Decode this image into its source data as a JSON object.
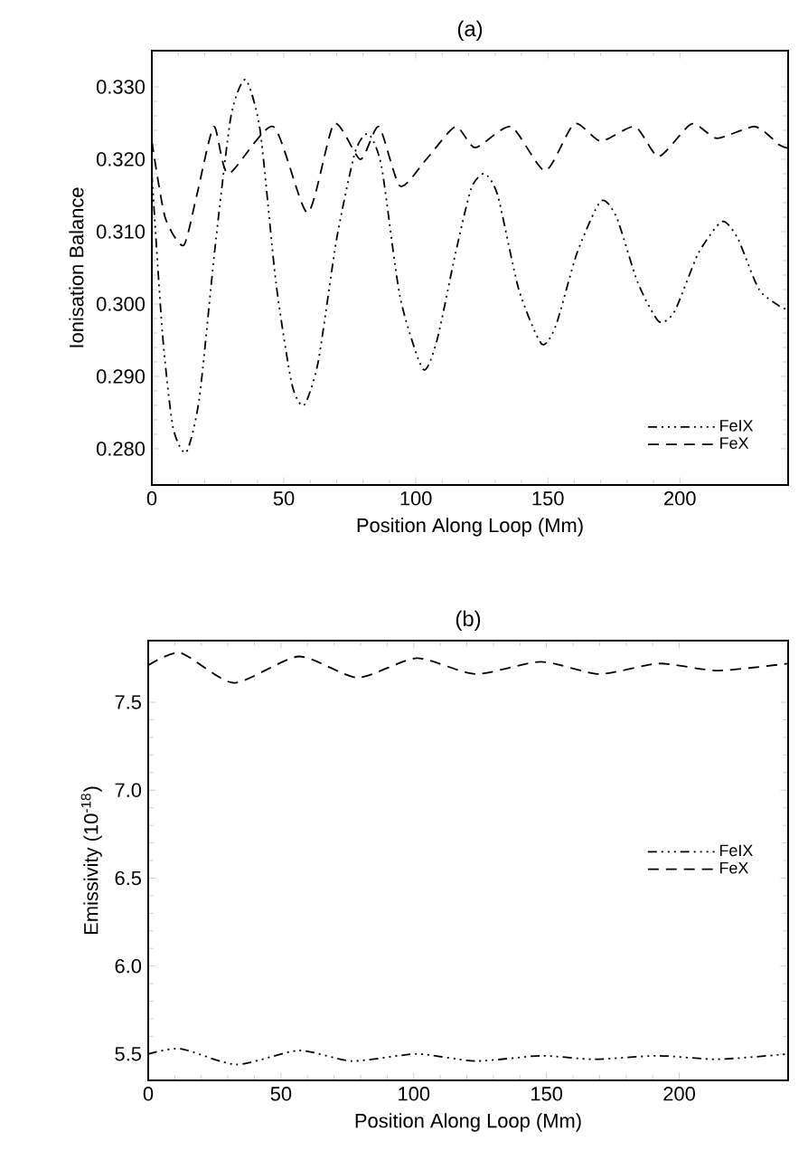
{
  "chart_data": [
    {
      "type": "line",
      "title": "(a)",
      "xlabel": "Position Along Loop (Mm)",
      "ylabel": "Ionisation Balance",
      "xlim": [
        0,
        241
      ],
      "ylim": [
        0.275,
        0.335
      ],
      "xticks": [
        0,
        50,
        100,
        150,
        200
      ],
      "yticks": [
        {
          "value": 0.28,
          "label": "0.280"
        },
        {
          "value": 0.29,
          "label": "0.290"
        },
        {
          "value": 0.3,
          "label": "0.300"
        },
        {
          "value": 0.31,
          "label": "0.310"
        },
        {
          "value": 0.32,
          "label": "0.320"
        },
        {
          "value": 0.33,
          "label": "0.330"
        }
      ],
      "legend": "bottom right",
      "grid": false,
      "series": [
        {
          "name": "FeIX",
          "color": "#000000",
          "line_style": "dashdot",
          "x": [
            0,
            4,
            8,
            13,
            18,
            24,
            30,
            35.5,
            41,
            47,
            53,
            57.6,
            63,
            70,
            77,
            82,
            87,
            94,
            102.7,
            108,
            115,
            121,
            126,
            131,
            139,
            147.6,
            153,
            161,
            170,
            176,
            184,
            192,
            198,
            207,
            216,
            222,
            230,
            238.7,
            241
          ],
          "values": [
            0.318,
            0.296,
            0.283,
            0.2795,
            0.287,
            0.308,
            0.326,
            0.331,
            0.324,
            0.303,
            0.289,
            0.286,
            0.292,
            0.309,
            0.321,
            0.3235,
            0.319,
            0.301,
            0.291,
            0.295,
            0.307,
            0.316,
            0.318,
            0.315,
            0.302,
            0.2945,
            0.297,
            0.307,
            0.3142,
            0.312,
            0.303,
            0.2976,
            0.299,
            0.307,
            0.3114,
            0.309,
            0.302,
            0.2995,
            0.2995
          ]
        },
        {
          "name": "FeX",
          "color": "#000000",
          "line_style": "dashed",
          "x": [
            0,
            5,
            12,
            17,
            23.5,
            29,
            46,
            59,
            69,
            79,
            86,
            94,
            104,
            115,
            122.5,
            136,
            149,
            160,
            170,
            183,
            192,
            204.5,
            214,
            228.5,
            237.6,
            241
          ],
          "values": [
            0.3225,
            0.312,
            0.3081,
            0.315,
            0.3245,
            0.318,
            0.3245,
            0.3126,
            0.3249,
            0.32,
            0.3245,
            0.3163,
            0.32,
            0.3245,
            0.3216,
            0.3245,
            0.3184,
            0.3249,
            0.3225,
            0.3245,
            0.3204,
            0.3249,
            0.3229,
            0.3245,
            0.322,
            0.3215
          ]
        }
      ]
    },
    {
      "type": "line",
      "title": "(b)",
      "xlabel": "Position Along Loop (Mm)",
      "ylabel": "Emissivity (10$^{-18}$)",
      "xlim": [
        0,
        241
      ],
      "ylim": [
        5.35,
        7.85
      ],
      "xticks": [
        0,
        50,
        100,
        150,
        200
      ],
      "yticks": [
        5.5,
        {
          "value": 6,
          "label": "6.0"
        },
        6.5,
        {
          "value": 7,
          "label": "7.0"
        },
        7.5
      ],
      "legend": "right",
      "grid": false,
      "series": [
        {
          "name": "FeIX",
          "color": "#000000",
          "line_style": "dashdot",
          "x": [
            0,
            12.2,
            33.3,
            56.7,
            76.7,
            101.1,
            123.3,
            147.8,
            167.8,
            192.2,
            214.4,
            241
          ],
          "values": [
            5.5,
            5.53,
            5.44,
            5.52,
            5.46,
            5.5,
            5.46,
            5.49,
            5.47,
            5.49,
            5.47,
            5.5
          ]
        },
        {
          "name": "FeX",
          "color": "#000000",
          "line_style": "dashed",
          "x": [
            0,
            12.2,
            32.2,
            56.7,
            78.9,
            101.1,
            123.3,
            147.8,
            170,
            192.2,
            214.4,
            241
          ],
          "values": [
            7.71,
            7.78,
            7.61,
            7.76,
            7.64,
            7.75,
            7.66,
            7.73,
            7.66,
            7.72,
            7.68,
            7.72
          ]
        }
      ]
    }
  ]
}
